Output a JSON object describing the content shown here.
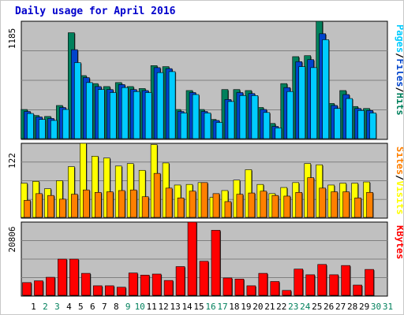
{
  "title": "Daily usage for April 2016",
  "colors": {
    "hits": "#00805c",
    "files": "#0044cc",
    "pages": "#00ccff",
    "visits": "#ffff00",
    "sites": "#ff8000",
    "kbytes": "#ff0000",
    "weekend_day": "#00805c",
    "weekday": "#000000",
    "plot_bg": "#c0c0c0",
    "grid": "#808080"
  },
  "chart_data": [
    {
      "type": "bar",
      "title": "",
      "scale_label": "1185",
      "ylim": [
        0,
        1185
      ],
      "legend": [
        {
          "label": "Pages",
          "color": "#00ccff"
        },
        {
          "label": "/",
          "color": "#000000"
        },
        {
          "label": "Files",
          "color": "#0044cc"
        },
        {
          "label": "/",
          "color": "#000000"
        },
        {
          "label": "Hits",
          "color": "#00805c"
        }
      ],
      "series": [
        {
          "values": [
            300,
            240,
            230,
            340,
            1070,
            640,
            560,
            530,
            570,
            530,
            510,
            740,
            730,
            300,
            490,
            300,
            200,
            500,
            500,
            490,
            320,
            160,
            560,
            830,
            840,
            1185,
            360,
            490,
            330,
            310
          ]
        },
        {
          "values": [
            280,
            225,
            210,
            320,
            900,
            620,
            530,
            500,
            550,
            500,
            490,
            720,
            710,
            280,
            470,
            280,
            190,
            400,
            470,
            460,
            300,
            130,
            520,
            780,
            800,
            1060,
            340,
            450,
            310,
            290
          ]
        },
        {
          "values": [
            260,
            200,
            190,
            300,
            770,
            570,
            500,
            470,
            520,
            480,
            470,
            670,
            680,
            265,
            450,
            265,
            170,
            380,
            440,
            440,
            270,
            115,
            480,
            730,
            720,
            1000,
            310,
            410,
            290,
            265
          ]
        }
      ]
    },
    {
      "type": "bar",
      "title": "",
      "scale_label": "122",
      "ylim": [
        0,
        122
      ],
      "legend": [
        {
          "label": "Sites",
          "color": "#ff8000"
        },
        {
          "label": "/",
          "color": "#000000"
        },
        {
          "label": "Visits",
          "color": "#ffff00"
        }
      ],
      "series": [
        {
          "values": [
            57,
            60,
            48,
            61,
            84,
            122,
            101,
            98,
            85,
            89,
            78,
            120,
            90,
            54,
            55,
            58,
            34,
            45,
            62,
            79,
            55,
            40,
            50,
            58,
            89,
            87,
            54,
            57,
            57,
            59
          ]
        },
        {
          "values": [
            29,
            40,
            37,
            31,
            39,
            46,
            42,
            43,
            45,
            46,
            35,
            73,
            49,
            33,
            44,
            58,
            40,
            27,
            39,
            41,
            44,
            37,
            36,
            42,
            66,
            49,
            43,
            43,
            33,
            42
          ]
        }
      ]
    },
    {
      "type": "bar",
      "title": "",
      "scale_label": "20806",
      "ylim": [
        0,
        20806
      ],
      "legend": [
        {
          "label": "KBytes",
          "color": "#ff0000"
        }
      ],
      "series": [
        {
          "values": [
            3800,
            4300,
            5300,
            10400,
            10400,
            6400,
            2900,
            2900,
            2500,
            6500,
            5900,
            6200,
            4400,
            8300,
            20806,
            9800,
            18500,
            5100,
            4800,
            2900,
            6400,
            4100,
            1600,
            7600,
            6000,
            8900,
            6000,
            8600,
            3100,
            7500
          ]
        }
      ]
    }
  ],
  "days": [
    "1",
    "2",
    "3",
    "4",
    "5",
    "6",
    "7",
    "8",
    "9",
    "10",
    "11",
    "12",
    "13",
    "14",
    "15",
    "16",
    "17",
    "18",
    "19",
    "20",
    "21",
    "22",
    "23",
    "24",
    "25",
    "26",
    "27",
    "28",
    "29",
    "30",
    "31"
  ],
  "weekend_days": [
    "2",
    "3",
    "9",
    "10",
    "16",
    "17",
    "23",
    "24",
    "30",
    "31"
  ]
}
